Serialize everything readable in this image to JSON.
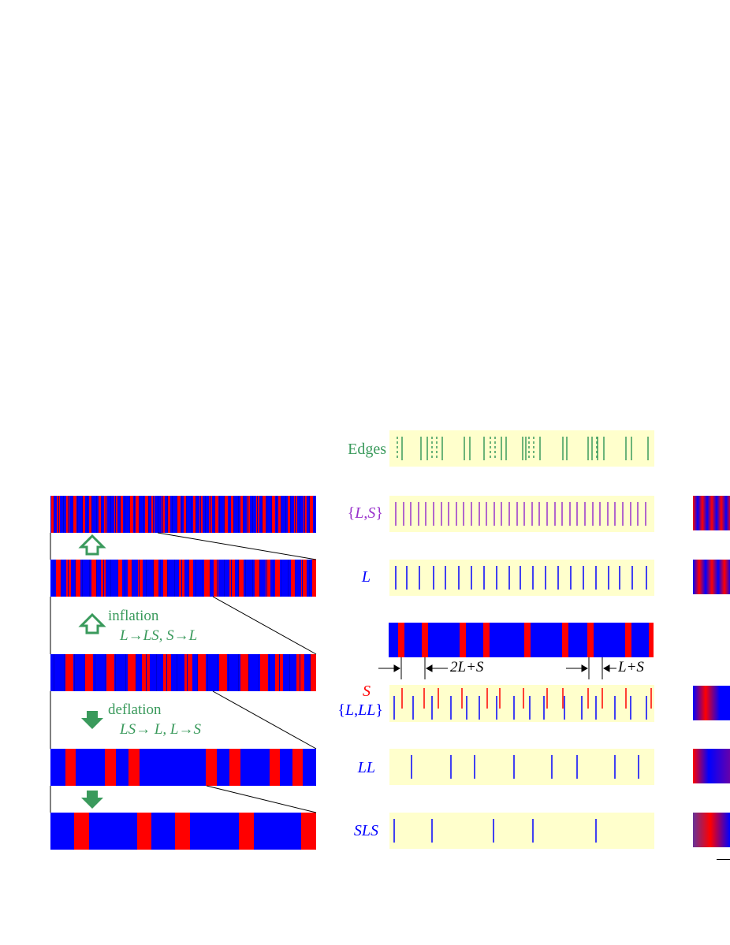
{
  "left": {
    "strips": [
      {
        "name": "strip-level-1",
        "red_positions": [
          0.002,
          0.024,
          0.06,
          0.085,
          0.12,
          0.145,
          0.18,
          0.203,
          0.24,
          0.262,
          0.299,
          0.321,
          0.357,
          0.38,
          0.418,
          0.44,
          0.477,
          0.5,
          0.538,
          0.56,
          0.597,
          0.62,
          0.656,
          0.679,
          0.716,
          0.738,
          0.775,
          0.797,
          0.834,
          0.857,
          0.893,
          0.916,
          0.952,
          0.975
        ],
        "red_width": 0.012
      },
      {
        "name": "strip-level-2",
        "red_positions": [
          0.02,
          0.06,
          0.095,
          0.155,
          0.19,
          0.252,
          0.29,
          0.33,
          0.39,
          0.425,
          0.485,
          0.52,
          0.58,
          0.615,
          0.675,
          0.71,
          0.77,
          0.81,
          0.845,
          0.905,
          0.945,
          0.985
        ],
        "red_width": 0.018
      },
      {
        "name": "strip-level-3",
        "red_positions": [
          0.055,
          0.13,
          0.21,
          0.29,
          0.345,
          0.425,
          0.505,
          0.555,
          0.635,
          0.715,
          0.79,
          0.845,
          0.925,
          0.975
        ],
        "red_width": 0.03
      },
      {
        "name": "strip-level-4",
        "red_positions": [
          0.055,
          0.205,
          0.295,
          0.585,
          0.675,
          0.825,
          0.91
        ],
        "red_width": 0.04
      },
      {
        "name": "strip-level-5",
        "red_positions": [
          0.09,
          0.325,
          0.47,
          0.71,
          0.945
        ],
        "red_width": 0.055
      }
    ],
    "inflation": {
      "word": "inflation",
      "rule": "L→LS,  S→L"
    },
    "deflation": {
      "word": "deflation",
      "rule": "LS→ L,  L→S"
    }
  },
  "middle": {
    "edges_label": "Edges",
    "ls_label": "{L,S}",
    "l_label": "L",
    "s_label": "S",
    "lll_label": "{L,LL}",
    "ll_label": "LL",
    "sls_label": "SLS",
    "dist_a": "2L+S",
    "dist_b": "L+S",
    "colors": {
      "blue": "#0000ff",
      "red": "#ff0000",
      "purple": "#9933cc",
      "green": "#3a9a5c",
      "panel": "#ffffcc"
    }
  }
}
